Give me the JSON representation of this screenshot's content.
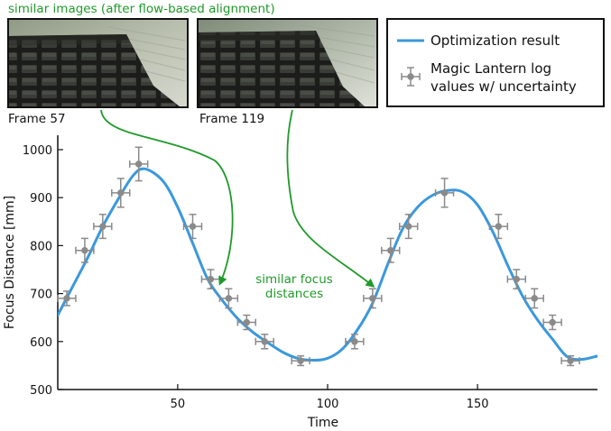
{
  "annotations": {
    "top_caption": "similar images (after flow-based alignment)",
    "focus_caption_line1": "similar focus",
    "focus_caption_line2": "distances",
    "frame_a": "Frame 57",
    "frame_b": "Frame 119"
  },
  "legend": {
    "line_label": "Optimization result",
    "marker_label_line1": "Magic Lantern log",
    "marker_label_line2": "values w/ uncertainty"
  },
  "colors": {
    "curve": "#3a98dd",
    "markers": "#8a8a8a",
    "annotation_green": "#1f9a2a"
  },
  "chart_data": {
    "type": "line",
    "xlabel": "Time",
    "ylabel": "Focus Distance [mm]",
    "xlim": [
      10,
      190
    ],
    "ylim": [
      500,
      1030
    ],
    "x_ticks": [
      50,
      100,
      150
    ],
    "y_ticks": [
      500,
      600,
      700,
      800,
      900,
      1000
    ],
    "series": [
      {
        "name": "Optimization result",
        "kind": "line",
        "x": [
          10,
          15,
          20,
          25,
          30,
          35,
          39,
          45,
          50,
          55,
          60,
          65,
          70,
          75,
          80,
          85,
          90,
          95,
          100,
          105,
          110,
          115,
          120,
          125,
          130,
          135,
          140,
          145,
          150,
          155,
          160,
          165,
          170,
          175,
          180,
          185,
          190
        ],
        "y": [
          655,
          715,
          775,
          840,
          895,
          945,
          960,
          935,
          880,
          805,
          730,
          685,
          648,
          620,
          598,
          578,
          565,
          561,
          565,
          585,
          625,
          680,
          760,
          835,
          880,
          905,
          915,
          912,
          885,
          830,
          760,
          695,
          645,
          605,
          568,
          563,
          570
        ]
      },
      {
        "name": "Magic Lantern log values w/ uncertainty",
        "kind": "errorbar",
        "x_err": 3,
        "points": [
          {
            "x": 13,
            "y": 690,
            "yerr": 15
          },
          {
            "x": 19,
            "y": 790,
            "yerr": 25
          },
          {
            "x": 25,
            "y": 840,
            "yerr": 25
          },
          {
            "x": 31,
            "y": 910,
            "yerr": 30
          },
          {
            "x": 37,
            "y": 970,
            "yerr": 35
          },
          {
            "x": 55,
            "y": 840,
            "yerr": 25
          },
          {
            "x": 61,
            "y": 730,
            "yerr": 20
          },
          {
            "x": 67,
            "y": 690,
            "yerr": 20
          },
          {
            "x": 73,
            "y": 640,
            "yerr": 15
          },
          {
            "x": 79,
            "y": 600,
            "yerr": 15
          },
          {
            "x": 91,
            "y": 560,
            "yerr": 10
          },
          {
            "x": 109,
            "y": 600,
            "yerr": 15
          },
          {
            "x": 115,
            "y": 690,
            "yerr": 20
          },
          {
            "x": 121,
            "y": 790,
            "yerr": 25
          },
          {
            "x": 127,
            "y": 840,
            "yerr": 25
          },
          {
            "x": 139,
            "y": 910,
            "yerr": 30
          },
          {
            "x": 157,
            "y": 840,
            "yerr": 25
          },
          {
            "x": 163,
            "y": 730,
            "yerr": 20
          },
          {
            "x": 169,
            "y": 690,
            "yerr": 20
          },
          {
            "x": 175,
            "y": 640,
            "yerr": 15
          },
          {
            "x": 181,
            "y": 560,
            "yerr": 10
          }
        ]
      }
    ]
  }
}
